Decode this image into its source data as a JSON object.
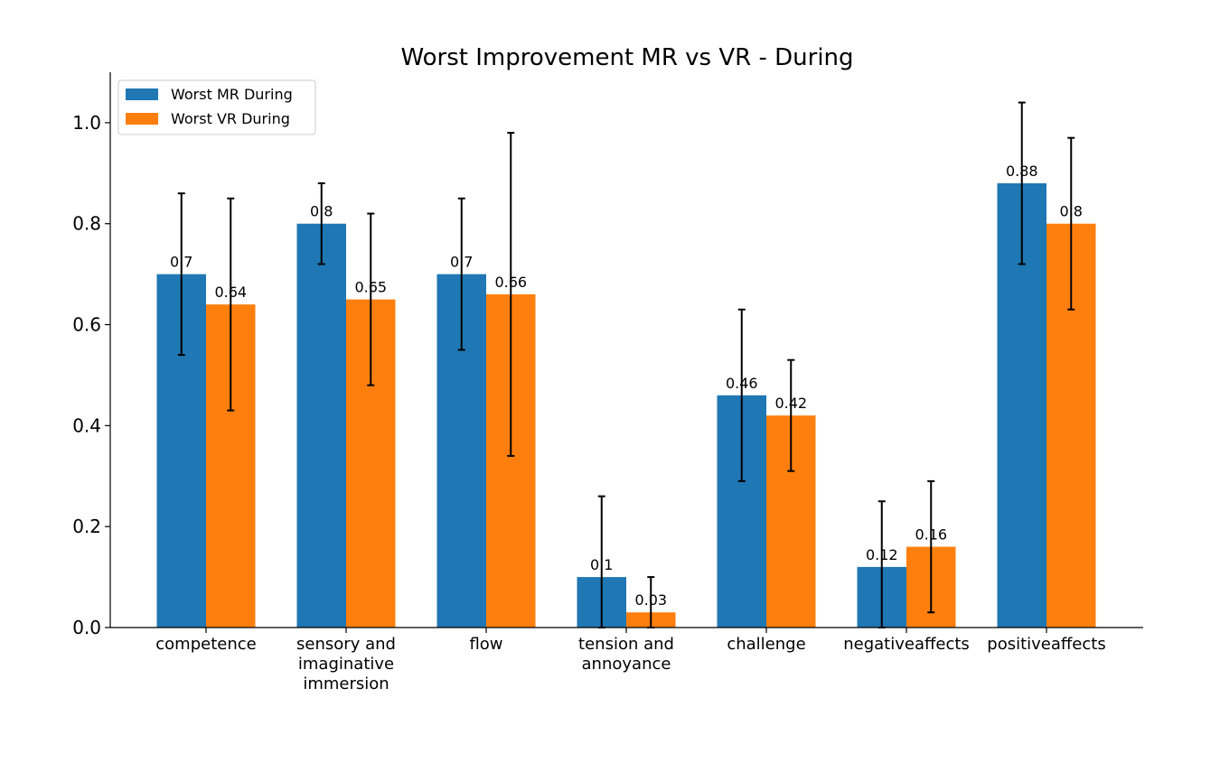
{
  "chart_data": {
    "type": "bar",
    "title": "Worst Improvement MR vs VR - During",
    "xlabel": "",
    "ylabel": "",
    "ylim": [
      0,
      1.1
    ],
    "yticks": [
      "0.0",
      "0.2",
      "0.4",
      "0.6",
      "0.8",
      "1.0"
    ],
    "categories": [
      "competence",
      "sensory and imaginative immersion",
      "flow",
      "tension and annoyance",
      "challenge",
      "negativeaffects",
      "positiveaffects"
    ],
    "category_lines": [
      [
        "competence"
      ],
      [
        "sensory and",
        "imaginative",
        "immersion"
      ],
      [
        "flow"
      ],
      [
        "tension and",
        "annoyance"
      ],
      [
        "challenge"
      ],
      [
        "negativeaffects"
      ],
      [
        "positiveaffects"
      ]
    ],
    "series": [
      {
        "name": "Worst MR During",
        "color": "#1f77b4",
        "values": [
          0.7,
          0.8,
          0.7,
          0.1,
          0.46,
          0.12,
          0.88
        ],
        "labels": [
          "0.7",
          "0.8",
          "0.7",
          "0.1",
          "0.46",
          "0.12",
          "0.88"
        ],
        "error": [
          0.16,
          0.08,
          0.15,
          0.16,
          0.17,
          0.13,
          0.16
        ]
      },
      {
        "name": "Worst VR During",
        "color": "#ff7f0e",
        "values": [
          0.64,
          0.65,
          0.66,
          0.03,
          0.42,
          0.16,
          0.8
        ],
        "labels": [
          "0.64",
          "0.65",
          "0.66",
          "0.03",
          "0.42",
          "0.16",
          "0.8"
        ],
        "error": [
          0.21,
          0.17,
          0.32,
          0.07,
          0.11,
          0.13,
          0.17
        ]
      }
    ],
    "legend_position": "top-left",
    "grid": false
  }
}
